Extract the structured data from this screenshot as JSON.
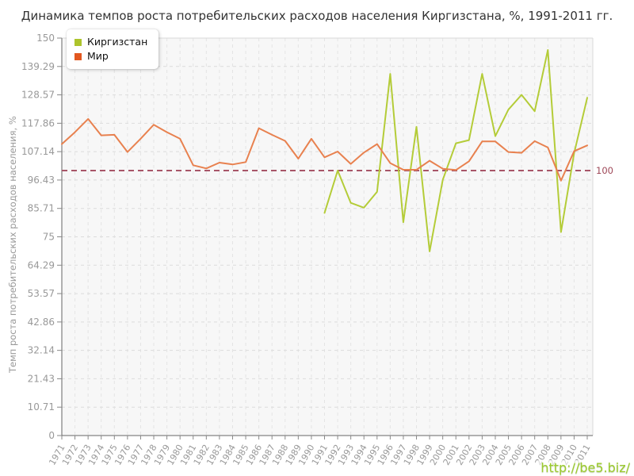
{
  "watermark": {
    "text": "http://be5.biz/"
  },
  "chart_data": {
    "type": "line",
    "title": "Динамика темпов роста потребительских расходов населения Киргизстана, %, 1991-2011 гг.",
    "ylabel": "Темп роста потребительских расходов населения, %",
    "xlabel": "",
    "ylim": [
      0,
      150
    ],
    "y_tick_labels": [
      "0",
      "10.71",
      "21.43",
      "32.14",
      "42.86",
      "53.57",
      "64.29",
      "75",
      "85.71",
      "96.43",
      "107.14",
      "117.86",
      "128.57",
      "139.29",
      "150"
    ],
    "x_categories": [
      "1971",
      "1972",
      "1973",
      "1974",
      "1975",
      "1976",
      "1977",
      "1978",
      "1979",
      "1980",
      "1981",
      "1982",
      "1983",
      "1984",
      "1985",
      "1986",
      "1987",
      "1988",
      "1989",
      "1990",
      "1991",
      "1992",
      "1993",
      "1994",
      "1995",
      "1996",
      "1997",
      "1998",
      "1999",
      "2000",
      "2001",
      "2002",
      "2003",
      "2004",
      "2005",
      "2006",
      "2007",
      "2008",
      "2009",
      "2010",
      "2011"
    ],
    "grid": true,
    "legend_position": "top-left-inside",
    "plot_bg": "#f7f7f7",
    "axis_color": "#666666",
    "tick_label_color": "#999999",
    "guide_line": {
      "value": 100,
      "label": "100",
      "line_color": "#a85568",
      "label_color": "#9e4757"
    },
    "series": [
      {
        "name": "Киргизстан",
        "line_color": "#b4cc38",
        "legend_color": "#adc42c",
        "values": [
          null,
          null,
          null,
          null,
          null,
          null,
          null,
          null,
          null,
          null,
          null,
          null,
          null,
          null,
          null,
          null,
          null,
          null,
          null,
          null,
          84.0,
          100.0,
          87.8,
          86.0,
          92.0,
          136.5,
          80.5,
          116.5,
          69.5,
          96.5,
          110.3,
          111.5,
          136.5,
          113.0,
          123.0,
          128.6,
          122.4,
          145.5,
          76.8,
          106.5,
          127.5
        ]
      },
      {
        "name": "Мир",
        "line_color": "#e8814f",
        "legend_color": "#e2571f",
        "values": [
          110.0,
          114.5,
          119.5,
          113.3,
          113.5,
          107.0,
          112.0,
          117.3,
          114.5,
          112.0,
          102.0,
          100.8,
          103.0,
          102.3,
          103.2,
          116.0,
          113.5,
          111.2,
          104.5,
          112.0,
          105.0,
          107.2,
          102.5,
          106.8,
          110.0,
          102.8,
          100.3,
          100.3,
          103.7,
          100.7,
          100.2,
          103.5,
          111.0,
          111.0,
          107.0,
          106.7,
          111.1,
          108.7,
          96.2,
          107.3,
          109.5
        ]
      }
    ]
  }
}
